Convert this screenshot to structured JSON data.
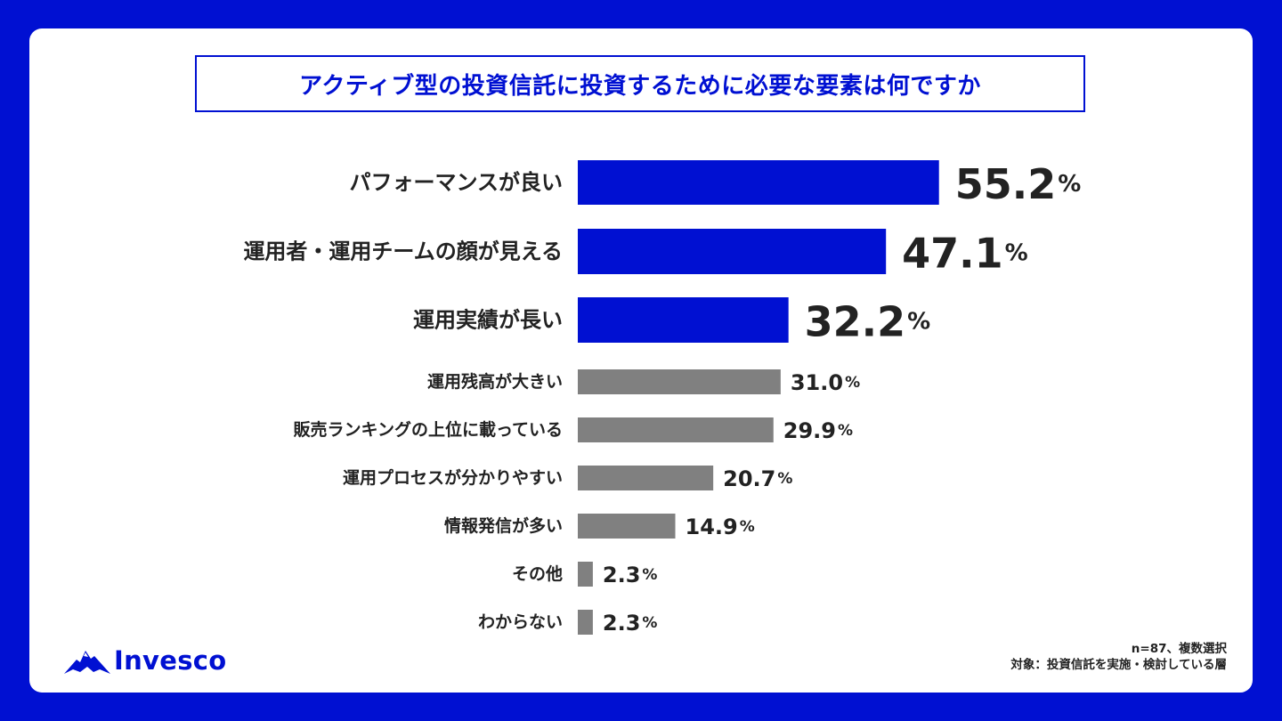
{
  "chart_data": {
    "type": "bar",
    "orientation": "horizontal",
    "title": "アクティブ型の投資信託に投資するために必要な要素は何ですか",
    "unit": "%",
    "xlim": [
      0,
      100
    ],
    "grid": false,
    "categories": [
      "パフォーマンスが良い",
      "運用者・運用チームの顔が見える",
      "運用実績が長い",
      "運用残高が大きい",
      "販売ランキングの上位に載っている",
      "運用プロセスが分かりやすい",
      "情報発信が多い",
      "その他",
      "わからない"
    ],
    "values": [
      55.2,
      47.1,
      32.2,
      31.0,
      29.9,
      20.7,
      14.9,
      2.3,
      2.3
    ],
    "value_labels": [
      "55.2",
      "47.1",
      "32.2",
      "31.0",
      "29.9",
      "20.7",
      "14.9",
      "2.3",
      "2.3"
    ],
    "highlight_count": 3,
    "colors": {
      "highlight": "#0010d2",
      "normal": "#808080",
      "text": "#222222"
    }
  },
  "brand": {
    "name": "Invesco",
    "icon": "mountain-logo-icon"
  },
  "notes": {
    "sample": "n=87、複数選択",
    "target": "対象：投資信託を実施・検討している層"
  }
}
